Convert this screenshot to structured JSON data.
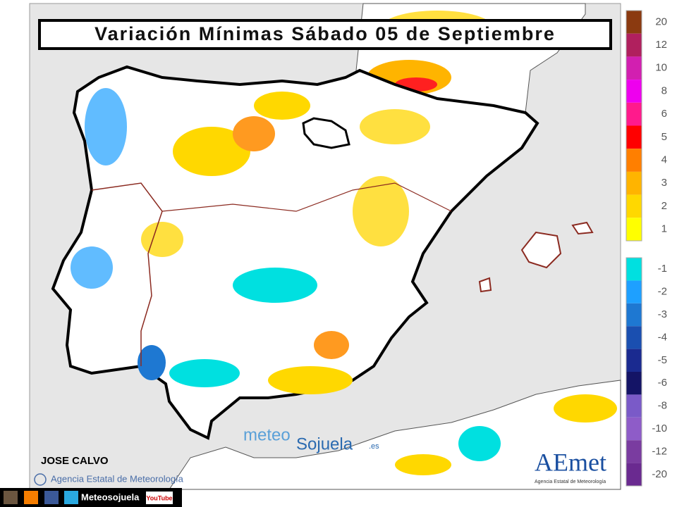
{
  "header": {
    "title": "Variación Mínimas Sábado 05 de Septiembre"
  },
  "legend": {
    "positive": [
      {
        "label": "20",
        "color": "#8b3a10"
      },
      {
        "label": "12",
        "color": "#b0205e"
      },
      {
        "label": "10",
        "color": "#d21fb0"
      },
      {
        "label": "8",
        "color": "#ee00ee"
      },
      {
        "label": "6",
        "color": "#ff1a8c"
      },
      {
        "label": "5",
        "color": "#ff0000"
      },
      {
        "label": "4",
        "color": "#ff7f00"
      },
      {
        "label": "3",
        "color": "#ffb400"
      },
      {
        "label": "2",
        "color": "#ffd800"
      },
      {
        "label": "1",
        "color": "#ffff00"
      }
    ],
    "negative": [
      {
        "label": "-1",
        "color": "#00e0e0"
      },
      {
        "label": "-2",
        "color": "#1ea0ff"
      },
      {
        "label": "-3",
        "color": "#1e78d2"
      },
      {
        "label": "-4",
        "color": "#1a4fb0"
      },
      {
        "label": "-5",
        "color": "#1a2a90"
      },
      {
        "label": "-6",
        "color": "#141466"
      },
      {
        "label": "-8",
        "color": "#7a5ac8"
      },
      {
        "label": "-10",
        "color": "#8e5cc8"
      },
      {
        "label": "-12",
        "color": "#7a3ca0"
      },
      {
        "label": "-20",
        "color": "#6a2a90"
      }
    ]
  },
  "author": "JOSE CALVO",
  "copyright": "Agencia Estatal de Meteorología",
  "logo_meteosojuela": {
    "part1": "meteo",
    "part2": "Sojuela",
    "suffix": ".es"
  },
  "logo_aemet": {
    "name": "AEmet",
    "subtitle": "Agencia Estatal de Meteorología"
  },
  "footer": {
    "site": "Meteosojuela",
    "youtube": "YouTube"
  }
}
